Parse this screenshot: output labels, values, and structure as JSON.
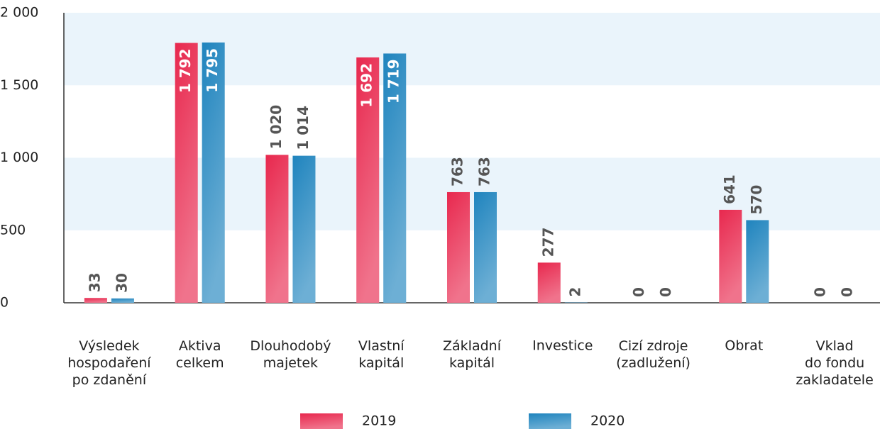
{
  "chart_data": {
    "type": "bar",
    "categories": [
      "Výsledek\nhospodaření\npo zdanění",
      "Aktiva\ncelkem",
      "Dlouhodobý\nmajetek",
      "Vlastní\nkapitál",
      "Základní\nkapitál",
      "Investice",
      "Cizí zdroje\n(zadlužení)",
      "Obrat",
      "Vklad\ndo fondu\nzakladatele"
    ],
    "series": [
      {
        "name": "2019",
        "color": "#e8284e",
        "values": [
          33,
          1792,
          1020,
          1692,
          763,
          277,
          0,
          641,
          0
        ],
        "value_labels": [
          "33",
          "1 792",
          "1 020",
          "1 692",
          "763",
          "277",
          "0",
          "641",
          "0"
        ]
      },
      {
        "name": "2020",
        "color": "#1f84be",
        "values": [
          30,
          1795,
          1014,
          1719,
          763,
          2,
          0,
          570,
          0
        ],
        "value_labels": [
          "30",
          "1 795",
          "1 014",
          "1 719",
          "763",
          "2",
          "0",
          "570",
          "0"
        ]
      }
    ],
    "ylim": [
      0,
      2000
    ],
    "yticks": [
      0,
      500,
      {
        "value": 1000,
        "label": "1 000"
      },
      {
        "value": 1500,
        "label": "1 500"
      },
      {
        "value": 2000,
        "label": "2 000"
      }
    ],
    "grid": true,
    "legend": "bottom"
  }
}
